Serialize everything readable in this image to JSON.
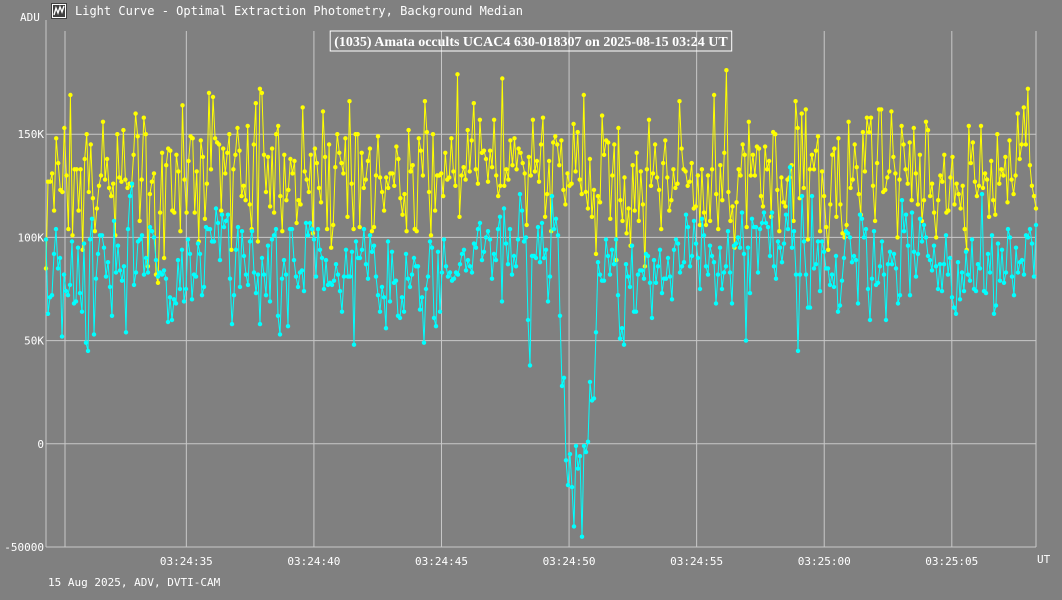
{
  "window": {
    "title": "Light Curve - Optimal Extraction Photometry, Background Median",
    "icon": "chart-icon"
  },
  "footer": {
    "info": "15 Aug 2025, ADV, DVTI-CAM"
  },
  "colors": {
    "background": "#808080",
    "grid": "#c8c8c8",
    "target_series": "#00ffff",
    "comparison_series": "#ffff00",
    "text": "#ffffff"
  },
  "chart_data": {
    "type": "line",
    "title": "(1035) Amata occults UCAC4 630-018307 on 2025-08-15  03:24 UT",
    "ylabel": "ADU",
    "xlabel": "UT",
    "ylim": [
      -50000,
      200000
    ],
    "y_ticks": [
      "-50000",
      "0",
      "50K",
      "100K",
      "150K"
    ],
    "y_tick_values": [
      -50000,
      0,
      50000,
      100000,
      150000
    ],
    "x_ticks": [
      "03:24:35",
      "03:24:40",
      "03:24:45",
      "03:24:50",
      "03:24:55",
      "03:25:00",
      "03:25:05"
    ],
    "x_tick_values": [
      35,
      40,
      45,
      50,
      55,
      60,
      65
    ],
    "xlim": [
      29.5,
      68.3
    ],
    "x_time_base": "03:24:00 UT",
    "grid": true,
    "legend": "none",
    "sample_interval_s": 0.1,
    "series": [
      {
        "color": "#ffff00",
        "description": "comparison star",
        "values": [
          85000,
          127000,
          127000,
          131000,
          113000,
          148000,
          136000,
          123000,
          122000,
          153000,
          130000,
          104000,
          169000,
          101000,
          133000,
          133000,
          113000,
          133000,
          94000,
          138000,
          150000,
          122000,
          145000,
          119000,
          103000,
          114000,
          125000,
          130000,
          156000,
          128000,
          138000,
          124000,
          120000,
          126000,
          101000,
          150000,
          129000,
          127000,
          152000,
          128000,
          124000,
          126000,
          125000,
          140000,
          160000,
          149000,
          108000,
          128000,
          158000,
          150000,
          86000,
          121000,
          127000,
          131000,
          82000,
          78000,
          112000,
          141000,
          90000,
          135000,
          143000,
          142000,
          113000,
          112000,
          140000,
          132000,
          103000,
          164000,
          128000,
          112000,
          137000,
          149000,
          148000,
          112000,
          132000,
          98000,
          147000,
          139000,
          109000,
          126000,
          170000,
          133000,
          168000,
          148000,
          146000,
          145000,
          113000,
          143000,
          131000,
          141000,
          150000,
          94000,
          133000,
          140000,
          153000,
          142000,
          120000,
          125000,
          118000,
          154000,
          116000,
          104000,
          145000,
          165000,
          98000,
          172000,
          170000,
          140000,
          122000,
          139000,
          115000,
          143000,
          112000,
          150000,
          154000,
          120000,
          103000,
          140000,
          118000,
          123000,
          138000,
          131000,
          137000,
          107000,
          118000,
          116000,
          163000,
          132000,
          128000,
          122000,
          140000,
          102000,
          143000,
          136000,
          124000,
          117000,
          161000,
          139000,
          104000,
          145000,
          95000,
          106000,
          134000,
          150000,
          141000,
          136000,
          131000,
          148000,
          110000,
          166000,
          126000,
          104000,
          150000,
          150000,
          105000,
          141000,
          124000,
          128000,
          137000,
          143000,
          103000,
          105000,
          130000,
          149000,
          129000,
          122000,
          113000,
          129000,
          124000,
          131000,
          131000,
          125000,
          144000,
          138000,
          119000,
          111000,
          121000,
          103000,
          152000,
          132000,
          135000,
          104000,
          103000,
          148000,
          142000,
          130000,
          166000,
          151000,
          122000,
          101000,
          150000,
          113000,
          130000,
          130000,
          131000,
          120000,
          141000,
          128000,
          129000,
          148000,
          132000,
          125000,
          179000,
          110000,
          130000,
          134000,
          128000,
          152000,
          132000,
          147000,
          165000,
          133000,
          126000,
          157000,
          141000,
          142000,
          138000,
          127000,
          142000,
          134000,
          157000,
          130000,
          120000,
          125000,
          177000,
          125000,
          133000,
          128000,
          147000,
          135000,
          148000,
          133000,
          143000,
          141000,
          136000,
          131000,
          106000,
          139000,
          130000,
          157000,
          132000,
          137000,
          127000,
          145000,
          158000,
          110000,
          121000,
          137000,
          103000,
          146000,
          149000,
          145000,
          135000,
          147000,
          123000,
          116000,
          131000,
          125000,
          126000,
          155000,
          132000,
          151000,
          128000,
          121000,
          169000,
          122000,
          114000,
          138000,
          110000,
          123000,
          92000,
          120000,
          117000,
          159000,
          140000,
          147000,
          146000,
          109000,
          130000,
          145000,
          89000,
          153000,
          118000,
          108000,
          129000,
          102000,
          114000,
          96000,
          135000,
          113000,
          141000,
          108000,
          132000,
          116000,
          86000,
          133000,
          157000,
          125000,
          131000,
          145000,
          129000,
          123000,
          104000,
          136000,
          147000,
          129000,
          113000,
          118000,
          133000,
          124000,
          126000,
          166000,
          143000,
          133000,
          132000,
          125000,
          127000,
          136000,
          114000,
          115000,
          130000,
          106000,
          133000,
          112000,
          106000,
          130000,
          108000,
          133000,
          169000,
          121000,
          104000,
          135000,
          118000,
          141000,
          181000,
          122000,
          108000,
          115000,
          95000,
          117000,
          133000,
          130000,
          145000,
          140000,
          105000,
          156000,
          130000,
          140000,
          130000,
          144000,
          143000,
          120000,
          115000,
          144000,
          133000,
          137000,
          110000,
          151000,
          150000,
          123000,
          103000,
          129000,
          117000,
          115000,
          128000,
          129000,
          135000,
          108000,
          166000,
          153000,
          119000,
          160000,
          124000,
          162000,
          99000,
          133000,
          140000,
          133000,
          142000,
          149000,
          103000,
          132000,
          120000,
          105000,
          94000,
          116000,
          140000,
          143000,
          110000,
          148000,
          116000,
          102000,
          100000,
          106000,
          156000,
          124000,
          128000,
          145000,
          134000,
          121000,
          111000,
          151000,
          132000,
          158000,
          151000,
          158000,
          125000,
          108000,
          136000,
          162000,
          162000,
          122000,
          123000,
          129000,
          132000,
          161000,
          139000,
          131000,
          100000,
          128000,
          154000,
          145000,
          133000,
          126000,
          146000,
          118000,
          153000,
          131000,
          116000,
          140000,
          108000,
          118000,
          156000,
          152000,
          120000,
          126000,
          112000,
          100000,
          118000,
          130000,
          127000,
          140000,
          112000,
          113000,
          129000,
          139000,
          116000,
          126000,
          121000,
          114000,
          125000,
          104000,
          94000,
          154000,
          136000,
          146000,
          127000,
          120000,
          125000,
          154000,
          124000,
          131000,
          128000,
          110000,
          137000,
          118000,
          111000,
          150000,
          126000,
          133000,
          130000,
          139000,
          117000,
          147000,
          128000,
          121000,
          130000,
          160000,
          138000,
          145000,
          163000,
          145000,
          172000,
          135000,
          125000,
          120000,
          114000
        ]
      },
      {
        "color": "#00ffff",
        "description": "target star (1035) Amata",
        "values": [
          99000,
          63000,
          71000,
          72000,
          92000,
          104000,
          85000,
          90000,
          52000,
          82000,
          74000,
          72000,
          77000,
          98000,
          68000,
          69000,
          95000,
          73000,
          64000,
          97000,
          49000,
          45000,
          99000,
          109000,
          53000,
          80000,
          92000,
          101000,
          101000,
          95000,
          81000,
          88000,
          76000,
          62000,
          108000,
          83000,
          96000,
          84000,
          79000,
          86000,
          54000,
          104000,
          120000,
          126000,
          77000,
          83000,
          98000,
          99000,
          101000,
          82000,
          90000,
          83000,
          105000,
          103000,
          100000,
          89000,
          81000,
          83000,
          82000,
          84000,
          80000,
          59000,
          71000,
          60000,
          70000,
          68000,
          89000,
          75000,
          94000,
          69000,
          75000,
          99000,
          92000,
          70000,
          82000,
          81000,
          97000,
          92000,
          72000,
          76000,
          105000,
          104000,
          104000,
          98000,
          98000,
          114000,
          107000,
          89000,
          111000,
          105000,
          108000,
          111000,
          80000,
          58000,
          72000,
          94000,
          105000,
          76000,
          103000,
          91000,
          82000,
          77000,
          98000,
          103000,
          83000,
          73000,
          82000,
          58000,
          90000,
          82000,
          72000,
          96000,
          69000,
          99000,
          101000,
          104000,
          62000,
          53000,
          80000,
          89000,
          82000,
          57000,
          104000,
          104000,
          89000,
          81000,
          76000,
          83000,
          84000,
          74000,
          107000,
          101000,
          107000,
          104000,
          99000,
          81000,
          104000,
          94000,
          90000,
          75000,
          89000,
          77000,
          78000,
          77000,
          79000,
          87000,
          82000,
          74000,
          64000,
          81000,
          94000,
          81000,
          81000,
          93000,
          48000,
          98000,
          90000,
          90000,
          94000,
          104000,
          87000,
          80000,
          101000,
          93000,
          96000,
          81000,
          72000,
          64000,
          76000,
          71000,
          56000,
          98000,
          69000,
          93000,
          78000,
          79000,
          62000,
          61000,
          71000,
          64000,
          92000,
          80000,
          76000,
          82000,
          90000,
          86000,
          86000,
          65000,
          71000,
          49000,
          75000,
          81000,
          98000,
          95000,
          61000,
          57000,
          93000,
          64000,
          83000,
          99000,
          86000,
          81000,
          83000,
          79000,
          80000,
          83000,
          82000,
          87000,
          92000,
          94000,
          84000,
          89000,
          86000,
          83000,
          97000,
          95000,
          104000,
          107000,
          89000,
          93000,
          100000,
          103000,
          99000,
          80000,
          92000,
          89000,
          104000,
          110000,
          69000,
          114000,
          97000,
          87000,
          104000,
          82000,
          91000,
          86000,
          99000,
          121000,
          113000,
          98000,
          100000,
          60000,
          38000,
          91000,
          91000,
          90000,
          105000,
          88000,
          107000,
          90000,
          94000,
          69000,
          81000,
          120000,
          104000,
          109000,
          101000,
          62000,
          28000,
          32000,
          -8000,
          -20000,
          -5000,
          -21000,
          -40000,
          -1000,
          -12000,
          -6000,
          -45000,
          -1000,
          -4000,
          1000,
          30000,
          21000,
          22000,
          54000,
          88000,
          82000,
          79000,
          79000,
          99000,
          91000,
          82000,
          94000,
          87000,
          99000,
          72000,
          51000,
          56000,
          48000,
          87000,
          81000,
          76000,
          96000,
          64000,
          64000,
          82000,
          84000,
          84000,
          80000,
          92000,
          91000,
          78000,
          61000,
          89000,
          78000,
          86000,
          94000,
          73000,
          80000,
          80000,
          90000,
          81000,
          70000,
          94000,
          99000,
          97000,
          83000,
          86000,
          88000,
          111000,
          105000,
          86000,
          91000,
          108000,
          97000,
          90000,
          75000,
          109000,
          101000,
          86000,
          82000,
          96000,
          91000,
          88000,
          68000,
          82000,
          95000,
          75000,
          83000,
          86000,
          103000,
          83000,
          68000,
          96000,
          97000,
          100000,
          95000,
          112000,
          92000,
          50000,
          95000,
          73000,
          109000,
          105000,
          105000,
          83000,
          104000,
          107000,
          112000,
          107000,
          105000,
          91000,
          112000,
          86000,
          80000,
          98000,
          95000,
          88000,
          97000,
          111000,
          104000,
          134000,
          95000,
          103000,
          82000,
          45000,
          82000,
          120000,
          98000,
          82000,
          66000,
          66000,
          120000,
          85000,
          87000,
          98000,
          74000,
          98000,
          93000,
          85000,
          85000,
          77000,
          82000,
          76000,
          91000,
          64000,
          67000,
          79000,
          90000,
          103000,
          102000,
          100000,
          88000,
          91000,
          89000,
          68000,
          111000,
          109000,
          100000,
          104000,
          75000,
          60000,
          80000,
          103000,
          77000,
          78000,
          86000,
          98000,
          82000,
          60000,
          87000,
          93000,
          87000,
          92000,
          85000,
          68000,
          72000,
          118000,
          103000,
          111000,
          96000,
          72000,
          112000,
          93000,
          81000,
          92000,
          109000,
          98000,
          106000,
          100000,
          91000,
          89000,
          84000,
          96000,
          86000,
          75000,
          87000,
          74000,
          87000,
          101000,
          82000,
          90000,
          71000,
          66000,
          63000,
          88000,
          70000,
          83000,
          74000,
          93000,
          82000,
          79000,
          99000,
          75000,
          74000,
          87000,
          85000,
          121000,
          74000,
          73000,
          92000,
          83000,
          101000,
          63000,
          67000,
          97000,
          79000,
          94000,
          78000,
          83000,
          104000,
          100000,
          81000,
          72000,
          95000,
          83000,
          88000,
          89000,
          82000,
          101000,
          100000,
          104000,
          97000,
          81000,
          106000
        ]
      }
    ]
  }
}
